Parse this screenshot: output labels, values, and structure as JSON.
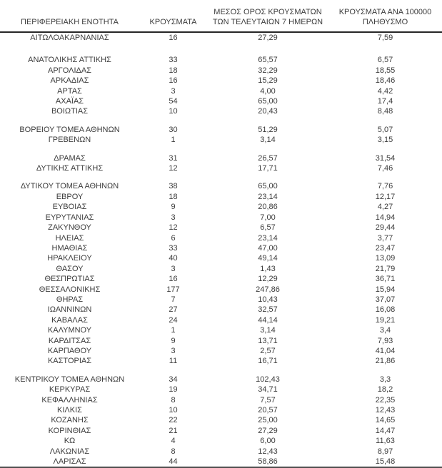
{
  "colors": {
    "background": "#ffffff",
    "text": "#3c3c3c",
    "header_rule": "#262626",
    "bottom_rule": "#4f4f4f"
  },
  "table": {
    "columns": [
      {
        "id": "region",
        "label": "ΠΕΡΙΦΕΡΕΙΑΚΗ ΕΝΟΤΗΤΑ"
      },
      {
        "id": "cases",
        "label": "ΚΡΟΥΣΜΑΤΑ"
      },
      {
        "id": "avg_7day",
        "label": "ΜΕΣΟΣ ΟΡΟΣ ΚΡΟΥΣΜΑΤΩΝ\nΤΩΝ ΤΕΛΕΥΤΑΙΩΝ 7 ΗΜΕΡΩΝ"
      },
      {
        "id": "per_100k",
        "label": "ΚΡΟΥΣΜΑΤΑ ΑΝΑ 100000\nΠΛΗΘΥΣΜΟ"
      }
    ],
    "rows": [
      {
        "region": "ΑΙΤΩΛΟΑΚΑΡΝΑΝΙΑΣ",
        "cases": "16",
        "avg_7day": "27,29",
        "per_100k": "7,59",
        "gap_after": "large"
      },
      {
        "region": "ΑΝΑΤΟΛΙΚΗΣ ΑΤΤΙΚΗΣ",
        "cases": "33",
        "avg_7day": "65,57",
        "per_100k": "6,57"
      },
      {
        "region": "ΑΡΓΟΛΙΔΑΣ",
        "cases": "18",
        "avg_7day": "32,29",
        "per_100k": "18,55"
      },
      {
        "region": "ΑΡΚΑΔΙΑΣ",
        "cases": "16",
        "avg_7day": "15,29",
        "per_100k": "18,46"
      },
      {
        "region": "ΑΡΤΑΣ",
        "cases": "3",
        "avg_7day": "4,00",
        "per_100k": "4,42"
      },
      {
        "region": "ΑΧΑΪΑΣ",
        "cases": "54",
        "avg_7day": "65,00",
        "per_100k": "17,4"
      },
      {
        "region": "ΒΟΙΩΤΙΑΣ",
        "cases": "10",
        "avg_7day": "20,43",
        "per_100k": "8,48",
        "gap_after": "small"
      },
      {
        "region": "ΒΟΡΕΙΟΥ ΤΟΜΕΑ ΑΘΗΝΩΝ",
        "cases": "30",
        "avg_7day": "51,29",
        "per_100k": "5,07"
      },
      {
        "region": "ΓΡΕΒΕΝΩΝ",
        "cases": "1",
        "avg_7day": "3,14",
        "per_100k": "3,15",
        "gap_after": "small"
      },
      {
        "region": "ΔΡΑΜΑΣ",
        "cases": "31",
        "avg_7day": "26,57",
        "per_100k": "31,54"
      },
      {
        "region": "ΔΥΤΙΚΗΣ ΑΤΤΙΚΗΣ",
        "cases": "12",
        "avg_7day": "17,71",
        "per_100k": "7,46",
        "gap_after": "small"
      },
      {
        "region": "ΔΥΤΙΚΟΥ ΤΟΜΕΑ ΑΘΗΝΩΝ",
        "cases": "38",
        "avg_7day": "65,00",
        "per_100k": "7,76"
      },
      {
        "region": "ΕΒΡΟΥ",
        "cases": "18",
        "avg_7day": "23,14",
        "per_100k": "12,17"
      },
      {
        "region": "ΕΥΒΟΙΑΣ",
        "cases": "9",
        "avg_7day": "20,86",
        "per_100k": "4,27"
      },
      {
        "region": "ΕΥΡΥΤΑΝΙΑΣ",
        "cases": "3",
        "avg_7day": "7,00",
        "per_100k": "14,94"
      },
      {
        "region": "ΖΑΚΥΝΘΟΥ",
        "cases": "12",
        "avg_7day": "6,57",
        "per_100k": "29,44"
      },
      {
        "region": "ΗΛΕΙΑΣ",
        "cases": "6",
        "avg_7day": "23,14",
        "per_100k": "3,77"
      },
      {
        "region": "ΗΜΑΘΙΑΣ",
        "cases": "33",
        "avg_7day": "47,00",
        "per_100k": "23,47"
      },
      {
        "region": "ΗΡΑΚΛΕΙΟΥ",
        "cases": "40",
        "avg_7day": "49,14",
        "per_100k": "13,09"
      },
      {
        "region": "ΘΑΣΟΥ",
        "cases": "3",
        "avg_7day": "1,43",
        "per_100k": "21,79"
      },
      {
        "region": "ΘΕΣΠΡΩΤΙΑΣ",
        "cases": "16",
        "avg_7day": "12,29",
        "per_100k": "36,71"
      },
      {
        "region": "ΘΕΣΣΑΛΟΝΙΚΗΣ",
        "cases": "177",
        "avg_7day": "247,86",
        "per_100k": "15,94"
      },
      {
        "region": "ΘΗΡΑΣ",
        "cases": "7",
        "avg_7day": "10,43",
        "per_100k": "37,07"
      },
      {
        "region": "ΙΩΑΝΝΙΝΩΝ",
        "cases": "27",
        "avg_7day": "32,57",
        "per_100k": "16,08"
      },
      {
        "region": "ΚΑΒΑΛΑΣ",
        "cases": "24",
        "avg_7day": "44,14",
        "per_100k": "19,21"
      },
      {
        "region": "ΚΑΛΥΜΝΟΥ",
        "cases": "1",
        "avg_7day": "3,14",
        "per_100k": "3,4"
      },
      {
        "region": "ΚΑΡΔΙΤΣΑΣ",
        "cases": "9",
        "avg_7day": "13,71",
        "per_100k": "7,93"
      },
      {
        "region": "ΚΑΡΠΑΘΟΥ",
        "cases": "3",
        "avg_7day": "2,57",
        "per_100k": "41,04"
      },
      {
        "region": "ΚΑΣΤΟΡΙΑΣ",
        "cases": "11",
        "avg_7day": "16,71",
        "per_100k": "21,86",
        "gap_after": "small"
      },
      {
        "region": "ΚΕΝΤΡΙΚΟΥ ΤΟΜΕΑ ΑΘΗΝΩΝ",
        "cases": "34",
        "avg_7day": "102,43",
        "per_100k": "3,3"
      },
      {
        "region": "ΚΕΡΚΥΡΑΣ",
        "cases": "19",
        "avg_7day": "34,71",
        "per_100k": "18,2"
      },
      {
        "region": "ΚΕΦΑΛΛΗΝΙΑΣ",
        "cases": "8",
        "avg_7day": "7,57",
        "per_100k": "22,35"
      },
      {
        "region": "ΚΙΛΚΙΣ",
        "cases": "10",
        "avg_7day": "20,57",
        "per_100k": "12,43"
      },
      {
        "region": "ΚΟΖΑΝΗΣ",
        "cases": "22",
        "avg_7day": "25,00",
        "per_100k": "14,65"
      },
      {
        "region": "ΚΟΡΙΝΘΙΑΣ",
        "cases": "21",
        "avg_7day": "27,29",
        "per_100k": "14,47"
      },
      {
        "region": "ΚΩ",
        "cases": "4",
        "avg_7day": "6,00",
        "per_100k": "11,63"
      },
      {
        "region": "ΛΑΚΩΝΙΑΣ",
        "cases": "8",
        "avg_7day": "12,43",
        "per_100k": "8,97"
      },
      {
        "region": "ΛΑΡΙΣΑΣ",
        "cases": "44",
        "avg_7day": "58,86",
        "per_100k": "15,48"
      }
    ]
  }
}
